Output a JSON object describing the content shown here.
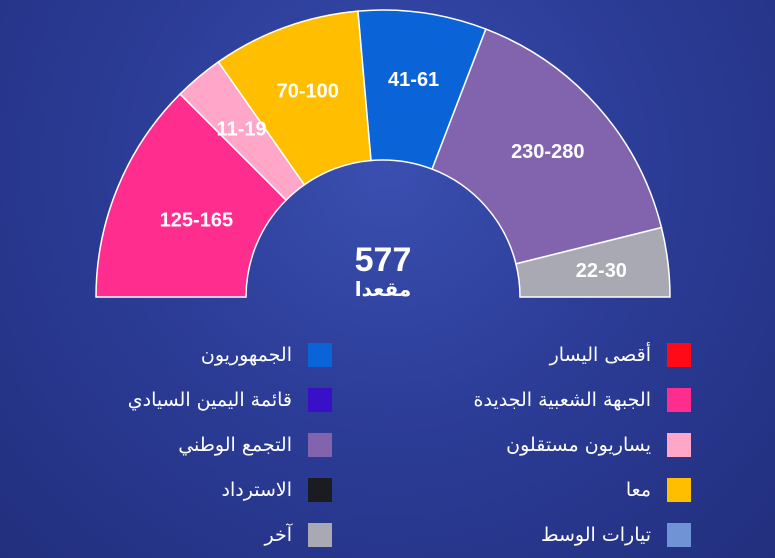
{
  "chart_data": {
    "type": "pie",
    "shape": "semicircle",
    "total_seats": "577",
    "center_caption": "مقعدا",
    "slices": [
      {
        "label": "125-165",
        "min": 125,
        "max": 165,
        "value": 145,
        "color": "#ff2d8e",
        "legend": "الجبهة الشعبية الجديدة"
      },
      {
        "label": "11-19",
        "min": 11,
        "max": 19,
        "value": 15,
        "color": "#ffa6c9",
        "legend": "يساريون مستقلون"
      },
      {
        "label": "70-100",
        "min": 70,
        "max": 100,
        "value": 85,
        "color": "#ffbf00",
        "legend": "معا"
      },
      {
        "label": "41-61",
        "min": 41,
        "max": 61,
        "value": 51,
        "color": "#0a64d8",
        "legend": "الجمهوريون"
      },
      {
        "label": "230-280",
        "min": 230,
        "max": 280,
        "value": 255,
        "color": "#8264ae",
        "legend": "التجمع الوطني"
      },
      {
        "label": "22-30",
        "min": 22,
        "max": 30,
        "value": 26,
        "color": "#a9a9b3",
        "legend": "آخر"
      }
    ],
    "legend": {
      "right_column": [
        {
          "label": "أقصى اليسار",
          "color": "#ff0a16"
        },
        {
          "label": "الجبهة الشعبية الجديدة",
          "color": "#ff2d8e"
        },
        {
          "label": "يساريون مستقلون",
          "color": "#ffa6c9"
        },
        {
          "label": "معا",
          "color": "#ffbf00"
        },
        {
          "label": "تيارات الوسط",
          "color": "#6f93d4"
        }
      ],
      "left_column": [
        {
          "label": "الجمهوريون",
          "color": "#0a64d8"
        },
        {
          "label": "قائمة اليمين السيادي",
          "color": "#3a0fc8"
        },
        {
          "label": "التجمع الوطني",
          "color": "#8264ae"
        },
        {
          "label": "الاسترداد",
          "color": "#1b1b22"
        },
        {
          "label": "آخر",
          "color": "#a9a9b3"
        }
      ]
    }
  }
}
